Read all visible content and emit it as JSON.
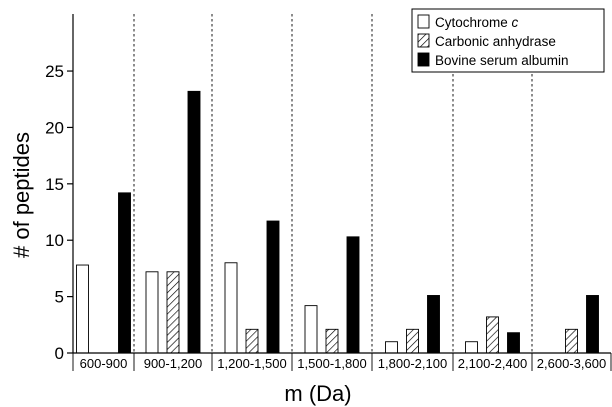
{
  "chart_data": {
    "type": "bar",
    "xlabel": "m (Da)",
    "ylabel": "# of peptides",
    "ylim": [
      0,
      26
    ],
    "yticks": [
      0,
      5,
      10,
      15,
      20,
      25
    ],
    "grid": false,
    "legend_position": "top-right",
    "categories": [
      "600-900",
      "900-1,200",
      "1,200-1,500",
      "1,500-1,800",
      "1,800-2,100",
      "2,100-2,400",
      "2,600-3,600"
    ],
    "series": [
      {
        "name": "Cytochrome",
        "name_italic_suffix": "c",
        "fill": "white",
        "values": [
          7.8,
          7.2,
          8.0,
          4.2,
          1.0,
          1.0,
          null
        ]
      },
      {
        "name": "Carbonic anhydrase",
        "fill": "hatched",
        "values": [
          null,
          7.2,
          2.1,
          2.1,
          2.1,
          3.2,
          2.1
        ]
      },
      {
        "name": "Bovine serum albumin",
        "fill": "black",
        "values": [
          14.2,
          23.2,
          11.7,
          10.3,
          5.1,
          1.8,
          5.1
        ]
      }
    ]
  }
}
